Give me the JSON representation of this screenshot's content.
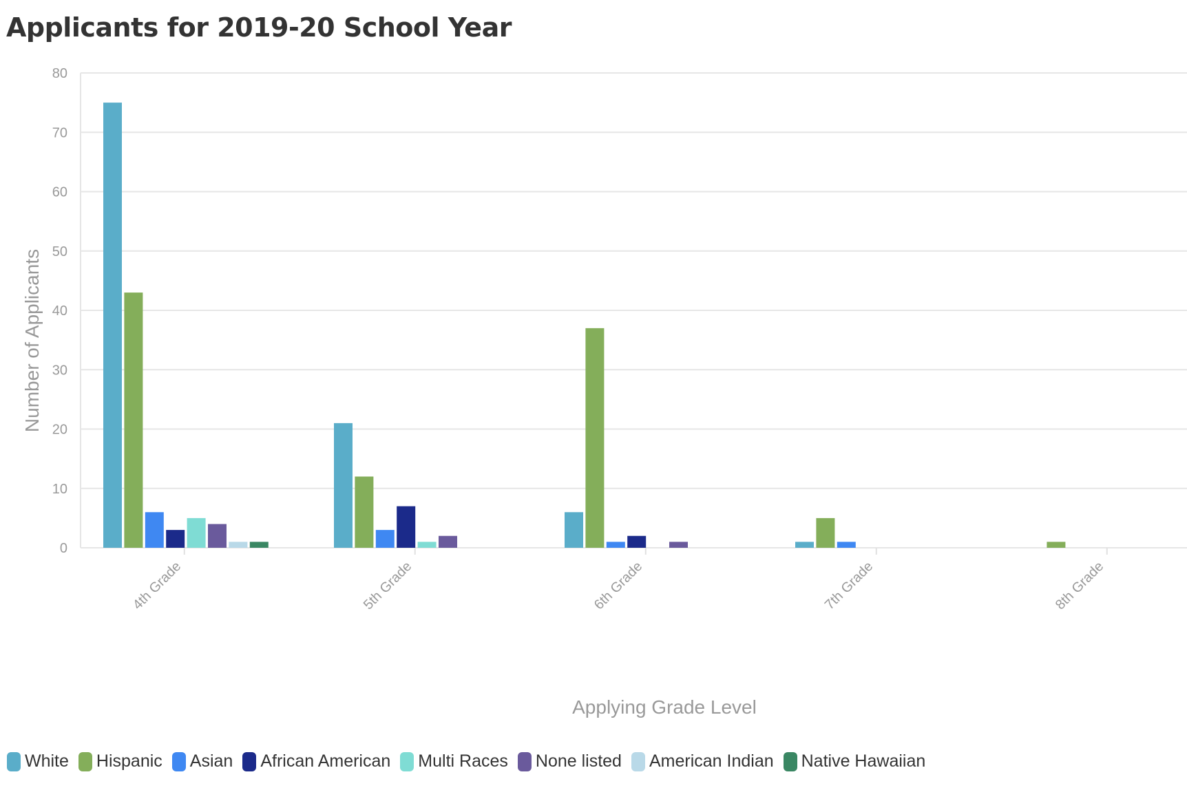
{
  "chart_data": {
    "type": "bar",
    "title": "Applicants for 2019-20 School Year",
    "xlabel": "Applying Grade Level",
    "ylabel": "Number of Applicants",
    "ylim": [
      0,
      80
    ],
    "yticks": [
      "0",
      "10",
      "20",
      "30",
      "40",
      "50",
      "60",
      "70",
      "80"
    ],
    "grid": true,
    "legend_position": "bottom-left",
    "categories": [
      "4th Grade",
      "5th Grade",
      "6th Grade",
      "7th Grade",
      "8th Grade"
    ],
    "series": [
      {
        "name": "White",
        "color": "#5aadc9",
        "values": [
          75,
          21,
          6,
          1,
          0
        ]
      },
      {
        "name": "Hispanic",
        "color": "#84ae5a",
        "values": [
          43,
          12,
          37,
          5,
          1
        ]
      },
      {
        "name": "Asian",
        "color": "#3f88f2",
        "values": [
          6,
          3,
          1,
          1,
          0
        ]
      },
      {
        "name": "African American",
        "color": "#1b2a8a",
        "values": [
          3,
          7,
          2,
          0,
          0
        ]
      },
      {
        "name": "Multi Races",
        "color": "#7fdcd4",
        "values": [
          5,
          1,
          0,
          0,
          0
        ]
      },
      {
        "name": "None listed",
        "color": "#6a5a9c",
        "values": [
          4,
          2,
          1,
          0,
          0
        ]
      },
      {
        "name": "American Indian",
        "color": "#b9d9e8",
        "values": [
          1,
          0,
          0,
          0,
          0
        ]
      },
      {
        "name": "Native Hawaiian",
        "color": "#3a8763",
        "values": [
          1,
          0,
          0,
          0,
          0
        ]
      }
    ]
  }
}
